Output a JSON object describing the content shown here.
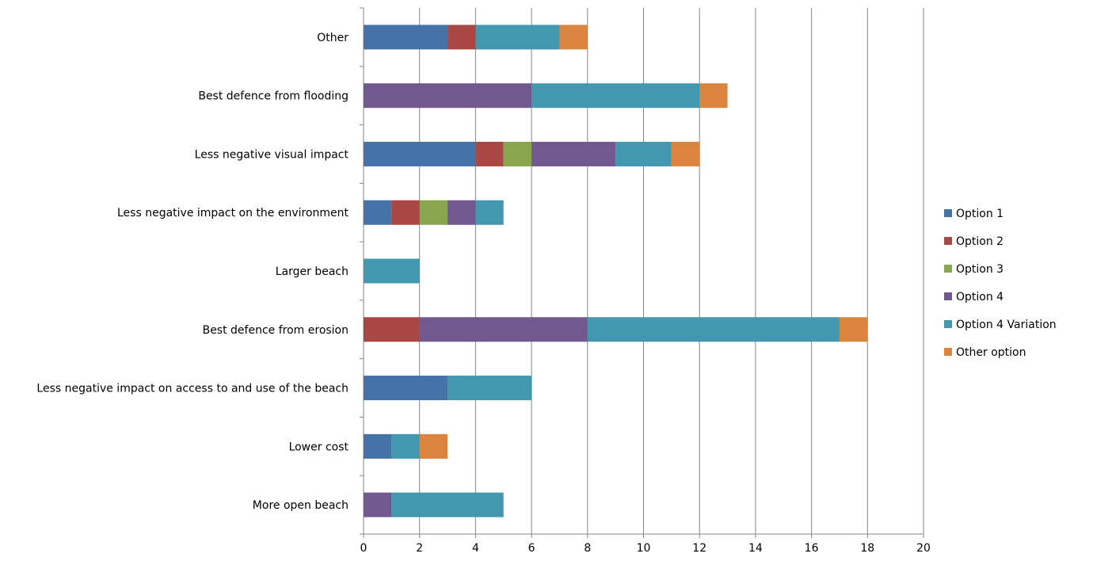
{
  "chart_data": {
    "type": "bar",
    "orientation": "horizontal",
    "stacked": true,
    "title": "",
    "xlabel": "",
    "ylabel": "",
    "xlim": [
      0,
      20
    ],
    "x_ticks": [
      0,
      2,
      4,
      6,
      8,
      10,
      12,
      14,
      16,
      18,
      20
    ],
    "grid": "vertical major gridlines",
    "legend_position": "right",
    "categories": [
      "Other",
      "Best defence from flooding",
      "Less negative visual impact",
      "Less negative impact on the environment",
      "Larger beach",
      "Best defence from erosion",
      "Less negative impact on access to and use of the beach",
      "Lower cost",
      "More open beach"
    ],
    "series": [
      {
        "name": "Option 1",
        "color": "#4572A7",
        "values": [
          3,
          0,
          4,
          1,
          0,
          0,
          3,
          1,
          0
        ]
      },
      {
        "name": "Option 2",
        "color": "#AA4643",
        "values": [
          1,
          0,
          1,
          1,
          0,
          2,
          0,
          0,
          0
        ]
      },
      {
        "name": "Option 3",
        "color": "#89A54E",
        "values": [
          0,
          0,
          1,
          1,
          0,
          0,
          0,
          0,
          0
        ]
      },
      {
        "name": "Option 4",
        "color": "#71588F",
        "values": [
          0,
          6,
          3,
          1,
          0,
          6,
          0,
          0,
          1
        ]
      },
      {
        "name": "Option 4 Variation",
        "color": "#4198AF",
        "values": [
          3,
          6,
          2,
          1,
          2,
          9,
          3,
          1,
          4
        ]
      },
      {
        "name": "Other option",
        "color": "#DB843D",
        "values": [
          1,
          1,
          1,
          0,
          0,
          1,
          0,
          1,
          0
        ]
      }
    ]
  }
}
